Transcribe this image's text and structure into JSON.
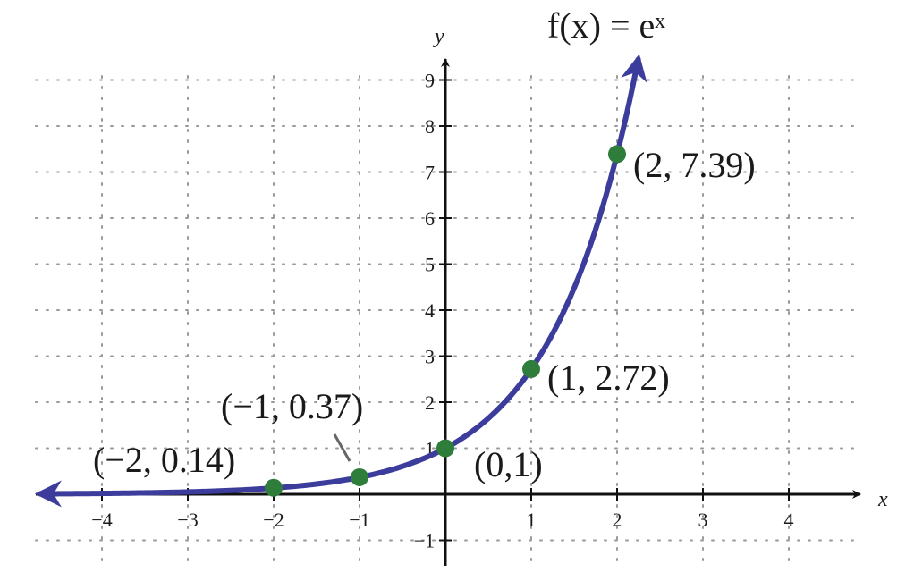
{
  "chart_data": {
    "type": "line",
    "function_label": "f(x) = eˣ",
    "xlabel": "x",
    "ylabel": "y",
    "xlim": [
      -4.7,
      4.7
    ],
    "ylim": [
      -1.6,
      9.6
    ],
    "grid": true,
    "x_ticks": [
      -4,
      -3,
      -2,
      -1,
      1,
      2,
      3,
      4
    ],
    "y_ticks": [
      -1,
      1,
      2,
      3,
      4,
      5,
      6,
      7,
      8,
      9
    ],
    "curve_color": "#3c3c9c",
    "point_color": "#2e7d3a",
    "points": [
      {
        "x": -2,
        "y": 0.14,
        "label": "(−2, 0.14)"
      },
      {
        "x": -1,
        "y": 0.37,
        "label": "(−1, 0.37)"
      },
      {
        "x": 0,
        "y": 1,
        "label": "(0,1)"
      },
      {
        "x": 1,
        "y": 2.72,
        "label": "(1, 2.72)"
      },
      {
        "x": 2,
        "y": 7.39,
        "label": "(2, 7.39)"
      }
    ]
  }
}
